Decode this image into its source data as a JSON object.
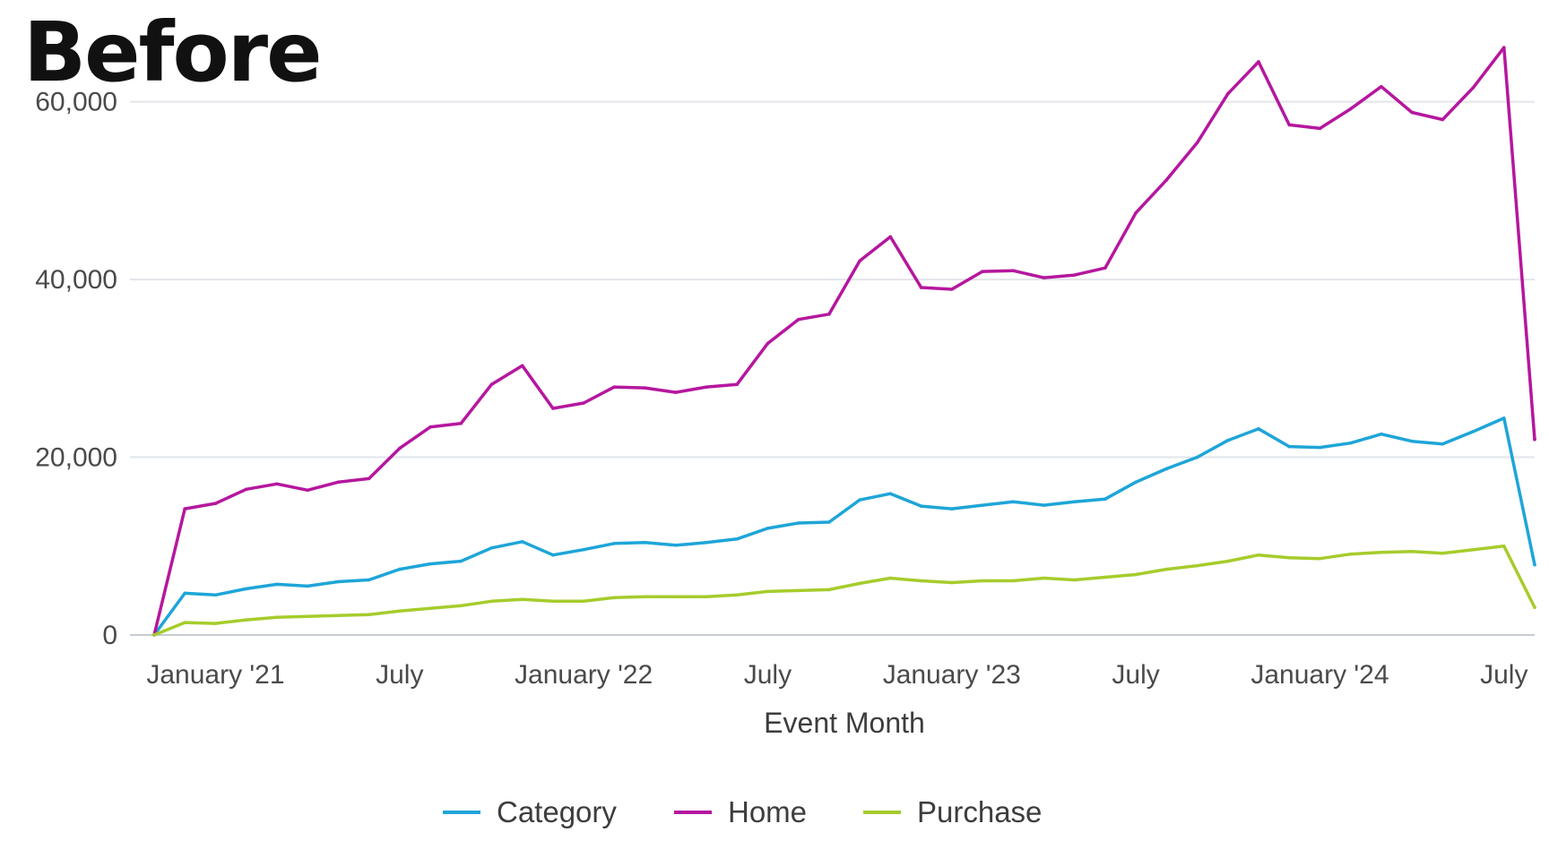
{
  "heading": "Before",
  "chart_data": {
    "type": "line",
    "title": "",
    "xlabel": "Event Month",
    "ylabel": "",
    "x": [
      "2020-12",
      "2021-01",
      "2021-02",
      "2021-03",
      "2021-04",
      "2021-05",
      "2021-06",
      "2021-07",
      "2021-08",
      "2021-09",
      "2021-10",
      "2021-11",
      "2021-12",
      "2022-01",
      "2022-02",
      "2022-03",
      "2022-04",
      "2022-05",
      "2022-06",
      "2022-07",
      "2022-08",
      "2022-09",
      "2022-10",
      "2022-11",
      "2022-12",
      "2023-01",
      "2023-02",
      "2023-03",
      "2023-04",
      "2023-05",
      "2023-06",
      "2023-07",
      "2023-08",
      "2023-09",
      "2023-10",
      "2023-11",
      "2023-12",
      "2024-01",
      "2024-02",
      "2024-03",
      "2024-04",
      "2024-05",
      "2024-06",
      "2024-07",
      "2024-08",
      "2024-09"
    ],
    "xtick_labels": [
      {
        "x": "2021-02",
        "label": "January '21"
      },
      {
        "x": "2021-08",
        "label": "July"
      },
      {
        "x": "2022-02",
        "label": "January '22"
      },
      {
        "x": "2022-08",
        "label": "July"
      },
      {
        "x": "2023-02",
        "label": "January '23"
      },
      {
        "x": "2023-08",
        "label": "July"
      },
      {
        "x": "2024-02",
        "label": "January '24"
      },
      {
        "x": "2024-08",
        "label": "July"
      }
    ],
    "yticks": [
      {
        "value": 0,
        "label": "0"
      },
      {
        "value": 20000,
        "label": "20,000"
      },
      {
        "value": 40000,
        "label": "40,000"
      },
      {
        "value": 60000,
        "label": "60,000"
      }
    ],
    "ylim": [
      0,
      65000
    ],
    "grid": true,
    "legend_position": "bottom-center",
    "series": [
      {
        "name": "Category",
        "color": "#1ea5d8",
        "values": [
          0,
          4700,
          4500,
          5200,
          5700,
          5500,
          6000,
          6200,
          7400,
          8000,
          8300,
          9800,
          10500,
          9000,
          9600,
          10300,
          10400,
          10100,
          10400,
          10800,
          12000,
          12600,
          12700,
          15200,
          15900,
          14500,
          14200,
          14600,
          15000,
          14600,
          15000,
          15300,
          17200,
          18700,
          20000,
          21900,
          23200,
          21200,
          21100,
          21600,
          22600,
          21800,
          21500,
          22900,
          24400,
          7900
        ]
      },
      {
        "name": "Home",
        "color": "#b5179e",
        "values": [
          0,
          14200,
          14800,
          16400,
          17000,
          16300,
          17200,
          17600,
          21000,
          23400,
          23800,
          28200,
          30300,
          25500,
          26100,
          27900,
          27800,
          27300,
          27900,
          28200,
          32800,
          35500,
          36100,
          42100,
          44800,
          39100,
          38900,
          40900,
          41000,
          40200,
          40500,
          41300,
          47500,
          51200,
          55400,
          60900,
          64500,
          57400,
          57000,
          59200,
          61700,
          58800,
          58000,
          61600,
          66100,
          22000
        ]
      },
      {
        "name": "Purchase",
        "color": "#a6cc2c",
        "values": [
          0,
          1400,
          1300,
          1700,
          2000,
          2100,
          2200,
          2300,
          2700,
          3000,
          3300,
          3800,
          4000,
          3800,
          3800,
          4200,
          4300,
          4300,
          4300,
          4500,
          4900,
          5000,
          5100,
          5800,
          6400,
          6100,
          5900,
          6100,
          6100,
          6400,
          6200,
          6500,
          6800,
          7400,
          7800,
          8300,
          9000,
          8700,
          8600,
          9100,
          9300,
          9400,
          9200,
          9600,
          10000,
          3100
        ]
      }
    ]
  }
}
